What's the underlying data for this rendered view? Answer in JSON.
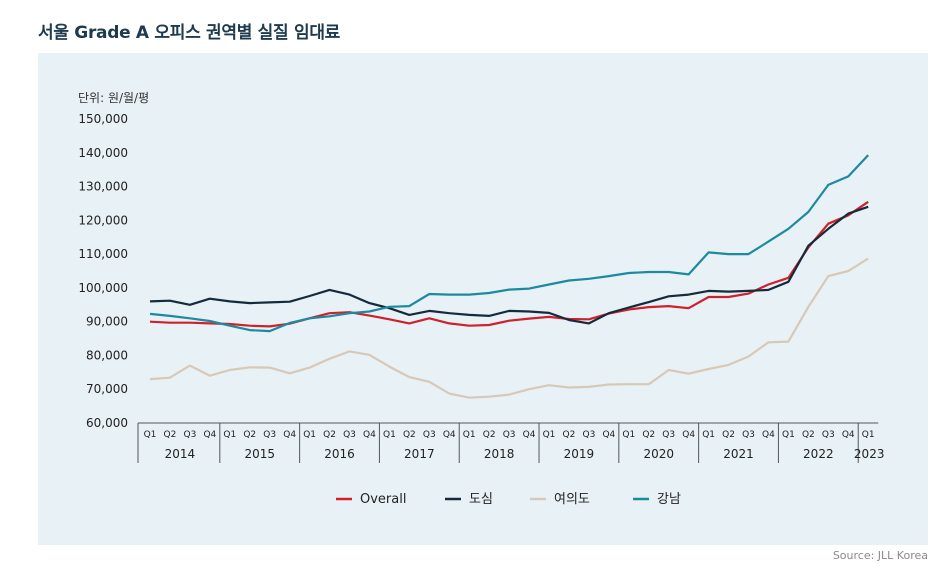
{
  "title": "서울 Grade A 오피스 권역별 실질 임대료",
  "source": "Source: JLL Korea",
  "chart_data": {
    "type": "line",
    "title": "서울 Grade A 오피스 권역별 실질 임대료",
    "unit_label": "단위: 원/월/평",
    "ylim": [
      60000,
      150000
    ],
    "yticks": [
      "60,000",
      "70,000",
      "80,000",
      "90,000",
      "100,000",
      "110,000",
      "120,000",
      "130,000",
      "140,000",
      "150,000"
    ],
    "x": [
      "Q1",
      "Q2",
      "Q3",
      "Q4",
      "Q1",
      "Q2",
      "Q3",
      "Q4",
      "Q1",
      "Q2",
      "Q3",
      "Q4",
      "Q1",
      "Q2",
      "Q3",
      "Q4",
      "Q1",
      "Q2",
      "Q3",
      "Q4",
      "Q1",
      "Q2",
      "Q3",
      "Q4",
      "Q1",
      "Q2",
      "Q3",
      "Q4",
      "Q1",
      "Q2",
      "Q3",
      "Q4",
      "Q1",
      "Q2",
      "Q3",
      "Q4",
      "Q1"
    ],
    "years": [
      "2014",
      "2015",
      "2016",
      "2017",
      "2018",
      "2019",
      "2020",
      "2021",
      "2022",
      "2023"
    ],
    "grid": false,
    "legend_position": "bottom",
    "series": [
      {
        "name": "Overall",
        "color": "#d0202e",
        "values": [
          90000,
          89700,
          89700,
          89500,
          89300,
          88800,
          88600,
          89400,
          91000,
          92500,
          92800,
          91800,
          90700,
          89500,
          91000,
          89500,
          88800,
          89000,
          90300,
          90900,
          91400,
          90800,
          90700,
          92400,
          93600,
          94300,
          94600,
          94000,
          97300,
          97300,
          98300,
          101000,
          103000,
          112000,
          119000,
          121500,
          125500
        ]
      },
      {
        "name": "도심",
        "color": "#152b3c",
        "values": [
          96000,
          96200,
          95000,
          96800,
          96000,
          95500,
          95700,
          95900,
          97600,
          99400,
          98000,
          95500,
          94000,
          92000,
          93200,
          92500,
          92000,
          91700,
          93200,
          93000,
          92600,
          90500,
          89500,
          92500,
          94200,
          95800,
          97500,
          98000,
          99100,
          98900,
          99100,
          99400,
          101800,
          112500,
          117500,
          122000,
          124000
        ]
      },
      {
        "name": "여의도",
        "color": "#d8c8b8",
        "values": [
          73000,
          73400,
          77000,
          74000,
          75700,
          76500,
          76400,
          74700,
          76400,
          79000,
          81200,
          80200,
          76700,
          73600,
          72200,
          68700,
          67500,
          67800,
          68400,
          70000,
          71200,
          70500,
          70700,
          71400,
          71500,
          71500,
          75700,
          74600,
          76000,
          77200,
          79700,
          83900,
          84100,
          94400,
          103500,
          105000,
          108700
        ]
      },
      {
        "name": "강남",
        "color": "#1c8aa0",
        "values": [
          92300,
          91700,
          91000,
          90200,
          88800,
          87500,
          87200,
          89600,
          91000,
          91600,
          92500,
          93000,
          94400,
          94600,
          98200,
          98000,
          98000,
          98500,
          99500,
          99800,
          101000,
          102200,
          102700,
          103500,
          104400,
          104700,
          104700,
          104000,
          110500,
          110000,
          110000,
          113700,
          117500,
          122500,
          130500,
          133000,
          139300
        ]
      }
    ]
  }
}
